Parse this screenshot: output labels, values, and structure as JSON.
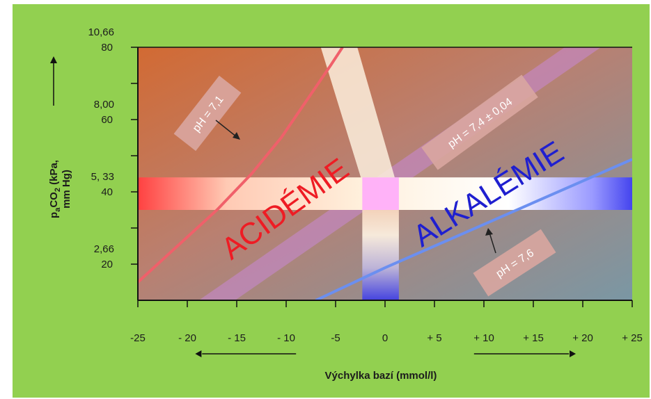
{
  "colors": {
    "background": "#92d050",
    "acidemia": "#ee1c24",
    "alkalemia": "#1f1fcf",
    "curve_acid": "#f0606a",
    "curve_alk": "#6b8ff0",
    "normal_band": "#c989d6"
  },
  "chart_data": {
    "type": "diagram",
    "x_axis": {
      "label": "Výchylka bazí (mmol/l)",
      "range": [
        -25,
        25
      ],
      "ticks": [
        {
          "v": -25,
          "label": "-25"
        },
        {
          "v": -20,
          "label": "- 20"
        },
        {
          "v": -15,
          "label": "- 15"
        },
        {
          "v": -10,
          "label": "- 10"
        },
        {
          "v": -5,
          "label": "-5"
        },
        {
          "v": 0,
          "label": "0"
        },
        {
          "v": 5,
          "label": "+ 5"
        },
        {
          "v": 10,
          "label": "+ 10"
        },
        {
          "v": 15,
          "label": "+ 15"
        },
        {
          "v": 20,
          "label": "+ 20"
        },
        {
          "v": 25,
          "label": "+ 25"
        }
      ]
    },
    "y_axis": {
      "label": "paCO2 (kPa, mm Hg)",
      "label_parts": [
        "p",
        "a",
        "CO",
        "2",
        " (kPa,",
        "mm Hg)"
      ],
      "range_mmHg": [
        10,
        80
      ],
      "ticks_mmHg": [
        20,
        30,
        40,
        50,
        60,
        70,
        80
      ],
      "labels": [
        {
          "mmHg": 80,
          "kpa": "10,66",
          "mm": "80"
        },
        {
          "mmHg": 60,
          "kpa": "8,00",
          "mm": "60"
        },
        {
          "mmHg": 40,
          "kpa": "5, 33",
          "mm": "40"
        },
        {
          "mmHg": 20,
          "kpa": "2,66",
          "mm": "20"
        }
      ]
    },
    "regions": [
      {
        "name": "ACIDÉMIE",
        "color": "#ee1c24"
      },
      {
        "name": "ALKALÉMIE",
        "color": "#1f1fcf"
      }
    ],
    "isopleths": [
      {
        "label": "pH = 7,1",
        "points": [
          [
            -25,
            15
          ],
          [
            -21,
            25
          ],
          [
            -17,
            35
          ],
          [
            -13.5,
            45
          ],
          [
            -10.5,
            55
          ],
          [
            -8,
            65
          ],
          [
            -5.5,
            75
          ],
          [
            -4.3,
            80
          ]
        ]
      },
      {
        "label": "pH = 7,4 ± 0,04",
        "points": [
          [
            -17,
            10
          ],
          [
            0,
            37
          ],
          [
            20,
            80
          ]
        ]
      },
      {
        "label": "pH = 7,6",
        "points": [
          [
            -7,
            10
          ],
          [
            0,
            19
          ],
          [
            10,
            31
          ],
          [
            20,
            43
          ],
          [
            25,
            49
          ]
        ]
      }
    ],
    "normal_values": {
      "base_excess": 0,
      "paCO2_mmHg": 40
    }
  }
}
